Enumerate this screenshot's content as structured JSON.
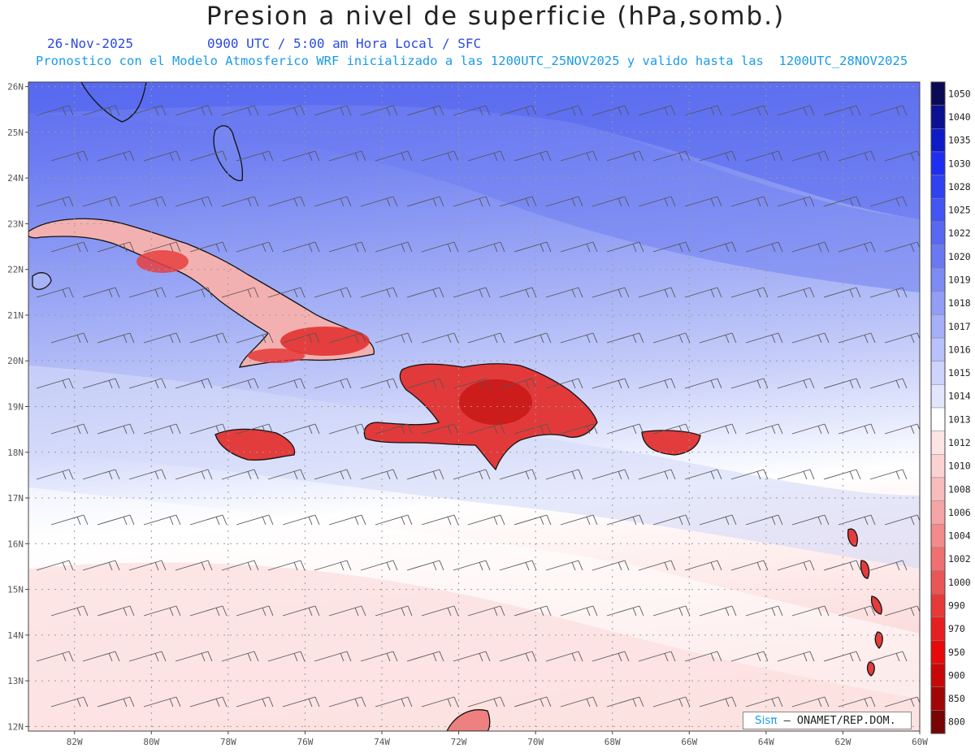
{
  "header": {
    "title": "Presion a nivel de superficie (hPa,somb.)",
    "date": "26-Nov-2025",
    "valid_time": "0900 UTC / 5:00 am Hora Local / SFC",
    "run_info": "Pronostico con el Modelo Atmosferico WRF inicializado a las 1200UTC_25NOV2025 y valido hasta las  1200UTC_28NOV2025"
  },
  "map": {
    "lat_labels": [
      "26N",
      "25N",
      "24N",
      "23N",
      "22N",
      "21N",
      "20N",
      "19N",
      "18N",
      "17N",
      "16N",
      "15N",
      "14N",
      "13N",
      "12N"
    ],
    "lon_labels": [
      "82W",
      "80W",
      "78W",
      "76W",
      "74W",
      "72W",
      "70W",
      "68W",
      "66W",
      "64W",
      "62W",
      "60W"
    ],
    "lat_range": [
      11.9,
      26.1
    ],
    "lon_range": [
      -83.2,
      -60.0
    ],
    "wind_barbs": "southeast winds 10-15 kt across domain"
  },
  "colorbar": {
    "levels": [
      "1050",
      "1040",
      "1035",
      "1030",
      "1028",
      "1025",
      "1022",
      "1020",
      "1019",
      "1018",
      "1017",
      "1016",
      "1015",
      "1014",
      "1013",
      "1012",
      "1010",
      "1008",
      "1006",
      "1004",
      "1002",
      "1000",
      "990",
      "970",
      "950",
      "900",
      "850",
      "800"
    ],
    "colors": [
      "#0a0a55",
      "#0b1190",
      "#0e1cc8",
      "#1e2ef0",
      "#2f42f2",
      "#4355f2",
      "#5868f2",
      "#6a79f2",
      "#7d8bf4",
      "#919ef6",
      "#a5b0f8",
      "#b8c1fa",
      "#cdd3fb",
      "#e2e6fd",
      "#ffffff",
      "#fde4e4",
      "#fbd2d2",
      "#f8bcbc",
      "#f5a5a5",
      "#f28b8b",
      "#ee7070",
      "#ea5555",
      "#e63a3a",
      "#e62020",
      "#e60a0a",
      "#c80808",
      "#a00606",
      "#780404"
    ]
  },
  "credit": {
    "brand": "Sisπ",
    "text": "– ONAMET/REP.DOM."
  }
}
